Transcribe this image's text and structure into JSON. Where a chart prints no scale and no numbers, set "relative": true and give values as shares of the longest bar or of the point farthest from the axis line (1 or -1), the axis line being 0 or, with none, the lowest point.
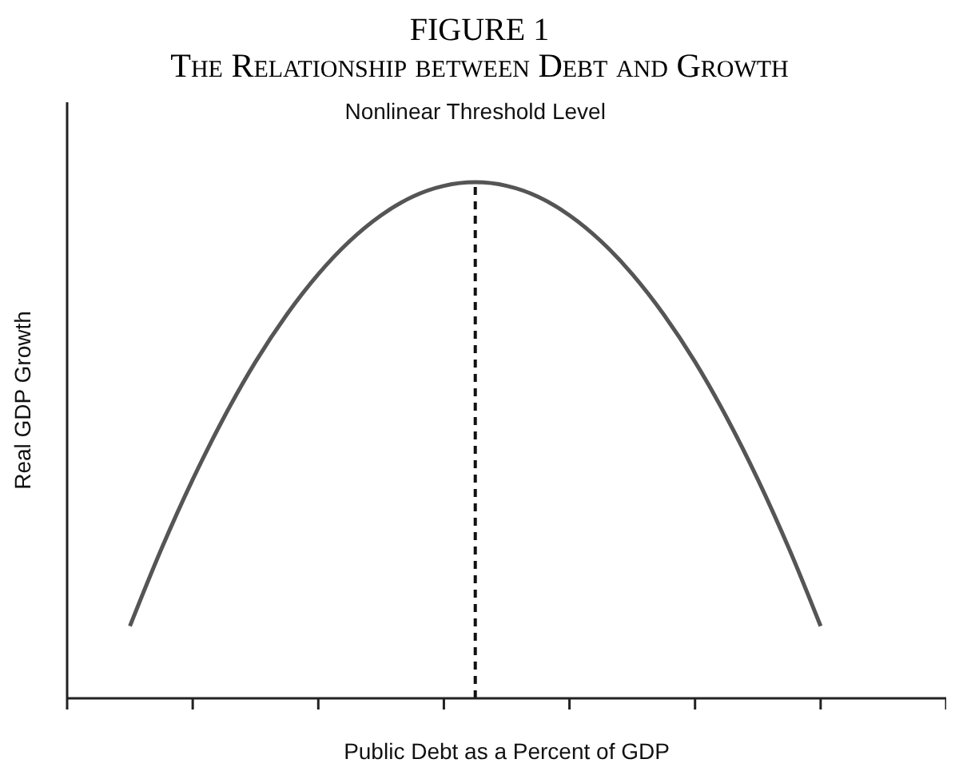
{
  "chart_data": {
    "type": "line",
    "title": "FIGURE 1",
    "subtitle": "The Relationship between Debt and Growth",
    "xlabel": "Public Debt as a Percent of GDP",
    "ylabel": "Real GDP Growth",
    "relative": true,
    "marker": "none",
    "categories": [
      null,
      null,
      null,
      null,
      null,
      null,
      null,
      null,
      null,
      null,
      null,
      null,
      null,
      null,
      null,
      null,
      null,
      null,
      null,
      null,
      null,
      null,
      null,
      null,
      null,
      null,
      null,
      null,
      null
    ],
    "series": [
      {
        "color": "#555555",
        "values": [
          null,
          null,
          0.14,
          0.289,
          0.424,
          0.545,
          0.652,
          0.744,
          0.822,
          0.886,
          0.936,
          0.972,
          0.993,
          1,
          0.993,
          0.972,
          0.936,
          0.886,
          0.822,
          0.744,
          0.652,
          0.545,
          0.424,
          0.289,
          0.14,
          null,
          null,
          null,
          null
        ]
      }
    ],
    "annotations": [
      {
        "text": "Nonlinear Threshold Level",
        "y": 1
      }
    ]
  }
}
